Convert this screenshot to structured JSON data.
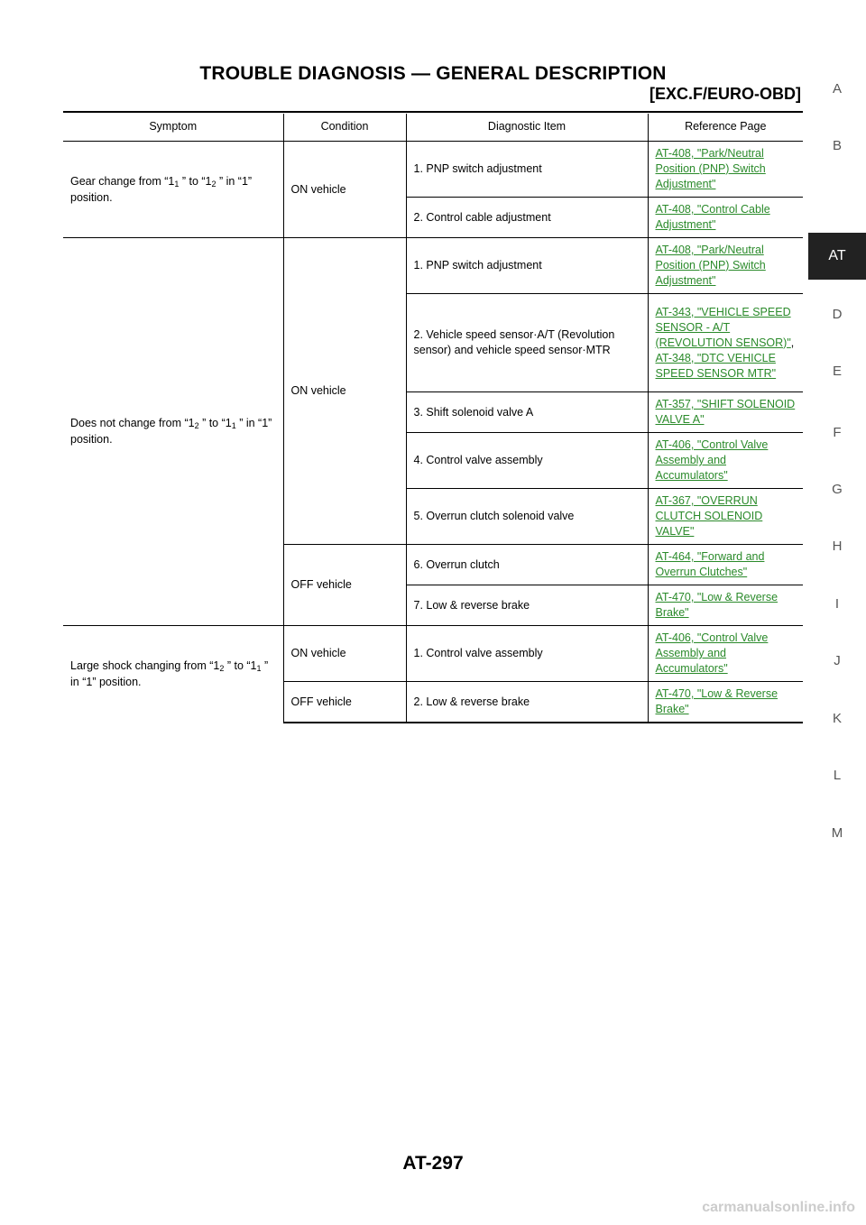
{
  "header": {
    "title": "TROUBLE DIAGNOSIS — GENERAL DESCRIPTION",
    "subtitle": "[EXC.F/EURO-OBD]"
  },
  "table": {
    "headers": [
      "Symptom",
      "Condition",
      "Diagnostic Item",
      "Reference Page"
    ],
    "symptom1": {
      "pre": "Gear change from “1",
      "sub1": "1",
      "mid": " ” to “1",
      "sub2": "2",
      "post": " ” in “1” position."
    },
    "symptom2": {
      "pre": "Does not change from “1",
      "sub1": "2",
      "mid": " ” to “1",
      "sub2": "1",
      "post": " ” in “1” position."
    },
    "symptom3": {
      "pre": "Large shock changing from “1",
      "sub1": "2",
      "mid": " ” to “1",
      "sub2": "1",
      "post": " ” in “1” position."
    },
    "conditions": {
      "on_vehicle": "ON vehicle",
      "off_vehicle": "OFF vehicle"
    },
    "items": [
      "1. PNP switch adjustment",
      "2. Control cable adjustment",
      "1. PNP switch adjustment",
      "2. Vehicle speed sensor·A/T (Revolution sensor) and vehicle speed sensor·MTR",
      "3. Shift solenoid valve A",
      "4. Control valve assembly",
      "5. Overrun clutch solenoid valve",
      "6. Overrun clutch",
      "7. Low & reverse brake",
      "1. Control valve assembly",
      "2. Low & reverse brake"
    ],
    "refs": [
      "AT-408, \"Park/Neutral Position (PNP) Switch Adjustment\"",
      "AT-408, \"Control Cable Adjustment\"",
      "AT-408, \"Park/Neutral Position (PNP) Switch Adjustment\"",
      "AT-343, \"VEHICLE SPEED SENSOR - A/T (REVOLUTION SENSOR)\"",
      "AT-348, \"DTC VEHICLE SPEED SENSOR MTR\"",
      "AT-357, \"SHIFT SOLENOID VALVE A\"",
      "AT-406, \"Control Valve Assembly and Accumulators\"",
      "AT-367, \"OVERRUN CLUTCH SOLENOID VALVE\"",
      "AT-464, \"Forward and Overrun Clutches\"",
      "AT-470, \"Low & Reverse Brake\"",
      "AT-406, \"Control Valve Assembly and Accumulators\"",
      "AT-470, \"Low & Reverse Brake\""
    ],
    "ref_separator": ", "
  },
  "side_index": {
    "letters": [
      "A",
      "B",
      "AT",
      "D",
      "E",
      "F",
      "G",
      "H",
      "I",
      "J",
      "K",
      "L",
      "M"
    ],
    "active": "AT"
  },
  "footer": {
    "page_number": "AT-297",
    "watermark": "carmanualsonline.info"
  },
  "colors": {
    "link": "#2a8a2a",
    "active_tab_bg": "#222222"
  }
}
